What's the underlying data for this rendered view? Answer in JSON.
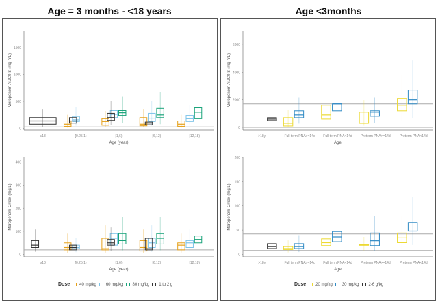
{
  "titles": {
    "left": "Age = 3 months - <18 years",
    "right": "Age <3months"
  },
  "legend_left": {
    "title": "Dose",
    "items": [
      {
        "label": "40 mg/kg",
        "color": "#e6a11a"
      },
      {
        "label": "60 mg/kg",
        "color": "#7cc3e8"
      },
      {
        "label": "80 mg/kg",
        "color": "#1aa37a"
      },
      {
        "label": "1 to 2 g",
        "color": "#333333"
      }
    ]
  },
  "legend_right": {
    "title": "Dose",
    "items": [
      {
        "label": "20 mg/kg",
        "color": "#ecd932"
      },
      {
        "label": "30 mg/kg",
        "color": "#2f8ac4"
      },
      {
        "label": "2-6 g/kg",
        "color": "#333333"
      }
    ]
  },
  "chart_data": [
    {
      "id": "top-left",
      "type": "box",
      "ylabel": "Meropenem AUC0-8 (mg·h/L)",
      "xlabel": "Age (year)",
      "categories": [
        "≥18",
        "[0.25,1)",
        "[1,6)",
        "[6,12)",
        "[12,18)"
      ],
      "yticks": [
        0,
        500,
        1000,
        1500
      ],
      "ylim": [
        -30,
        1800
      ],
      "hlines": [
        30
      ],
      "series": [
        {
          "name": "40 mg/kg",
          "color": "#e6a11a",
          "boxes": [
            null,
            [
              40,
              80,
              140
            ],
            [
              60,
              130,
              180
            ],
            [
              50,
              80,
              200
            ],
            [
              40,
              80,
              140
            ]
          ]
        },
        {
          "name": "60 mg/kg",
          "color": "#7cc3e8",
          "boxes": [
            null,
            [
              130,
              160,
              220
            ],
            [
              200,
              260,
              330
            ],
            [
              130,
              190,
              280
            ],
            [
              130,
              180,
              240
            ]
          ]
        },
        {
          "name": "80 mg/kg",
          "color": "#1aa37a",
          "boxes": [
            null,
            null,
            [
              240,
              290,
              330
            ],
            [
              200,
              250,
              370
            ],
            [
              180,
              300,
              380
            ]
          ]
        },
        {
          "name": "1 to 2 g",
          "color": "#333333",
          "boxes": [
            [
              80,
              140,
              200
            ],
            [
              100,
              140,
              200
            ],
            [
              150,
              200,
              280
            ],
            [
              70,
              100,
              120
            ],
            null
          ]
        }
      ]
    },
    {
      "id": "bottom-left",
      "type": "box",
      "ylabel": "Meropenem Cmax (mg/L)",
      "xlabel": "Age (year)",
      "categories": [
        "≥18",
        "[0.25,1)",
        "[1,6)",
        "[6,12)",
        "[12,18)"
      ],
      "yticks": [
        0,
        100,
        200,
        300,
        400
      ],
      "ylim": [
        -10,
        420
      ],
      "hlines": [
        20,
        110
      ],
      "series": [
        {
          "name": "40 mg/kg",
          "color": "#e6a11a",
          "boxes": [
            null,
            [
              20,
              30,
              50
            ],
            [
              20,
              25,
              70
            ],
            [
              15,
              30,
              60
            ],
            [
              20,
              40,
              50
            ]
          ]
        },
        {
          "name": "60 mg/kg",
          "color": "#7cc3e8",
          "boxes": [
            null,
            [
              25,
              30,
              40
            ],
            [
              40,
              70,
              90
            ],
            [
              30,
              50,
              70
            ],
            [
              30,
              50,
              60
            ]
          ]
        },
        {
          "name": "80 mg/kg",
          "color": "#1aa37a",
          "boxes": [
            null,
            null,
            [
              45,
              60,
              90
            ],
            [
              45,
              70,
              90
            ],
            [
              50,
              65,
              80
            ]
          ]
        },
        {
          "name": "1 to 2 g",
          "color": "#333333",
          "boxes": [
            [
              30,
              40,
              60
            ],
            [
              20,
              30,
              40
            ],
            [
              40,
              50,
              65
            ],
            [
              20,
              25,
              70
            ],
            null
          ]
        }
      ]
    },
    {
      "id": "top-right",
      "type": "box",
      "ylabel": "Meropenem AUC0-8 (mg·h/L)",
      "xlabel": "Age",
      "categories": [
        ">18y",
        "Full term PNA>=14d",
        "Full term PNA<14d",
        "Preterm PNA>=14d",
        "Preterm PNA<14d"
      ],
      "yticks": [
        0,
        2000,
        4000,
        6000
      ],
      "ylim": [
        -200,
        7000
      ],
      "hlines": [
        0,
        1700
      ],
      "series": [
        {
          "name": "20 mg/kg",
          "color": "#ecd932",
          "boxes": [
            null,
            [
              100,
              300,
              700
            ],
            [
              600,
              900,
              1600
            ],
            [
              300,
              300,
              1100
            ],
            [
              1200,
              1600,
              2100
            ]
          ]
        },
        {
          "name": "30 mg/kg",
          "color": "#2f8ac4",
          "boxes": [
            null,
            [
              700,
              900,
              1200
            ],
            [
              1200,
              1700,
              1700
            ],
            [
              800,
              1100,
              1200
            ],
            [
              1700,
              2000,
              2700
            ]
          ]
        },
        {
          "name": "2-6 g/kg",
          "color": "#333333",
          "boxes": [
            [
              500,
              600,
              700
            ],
            null,
            null,
            null,
            null
          ]
        }
      ]
    },
    {
      "id": "bottom-right",
      "type": "box",
      "ylabel": "Meropenem Cmax (mg/L)",
      "xlabel": "Age",
      "categories": [
        ">18y",
        "Full term PNA>=14d",
        "Full term PNA<14d",
        "Preterm PNA>=14d",
        "Preterm PNA<14d"
      ],
      "yticks": [
        0,
        50,
        100,
        150,
        200
      ],
      "ylim": [
        -5,
        200
      ],
      "hlines": [
        8,
        42
      ],
      "series": [
        {
          "name": "20 mg/kg",
          "color": "#ecd932",
          "boxes": [
            null,
            [
              10,
              12,
              16
            ],
            [
              18,
              24,
              32
            ],
            [
              20,
              20,
              20
            ],
            [
              24,
              34,
              44
            ]
          ]
        },
        {
          "name": "30 mg/kg",
          "color": "#2f8ac4",
          "boxes": [
            null,
            [
              12,
              16,
              22
            ],
            [
              26,
              36,
              47
            ],
            [
              18,
              28,
              44
            ],
            [
              48,
              48,
              66
            ]
          ]
        },
        {
          "name": "2-6 g/kg",
          "color": "#333333",
          "boxes": [
            [
              12,
              16,
              22
            ],
            null,
            null,
            null,
            null
          ]
        }
      ]
    }
  ]
}
